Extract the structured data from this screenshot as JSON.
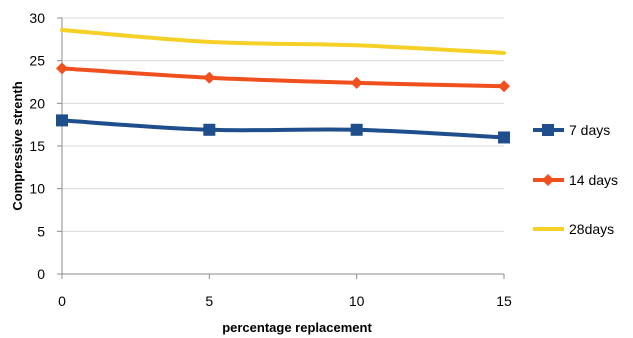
{
  "chart_data": {
    "type": "line",
    "title": "",
    "xlabel": "percentage replacement",
    "ylabel": "Compressive strenth",
    "x": [
      0,
      5,
      10,
      15
    ],
    "xlim": [
      0,
      15
    ],
    "ylim": [
      0,
      30
    ],
    "yticks": [
      0,
      5,
      10,
      15,
      20,
      25,
      30
    ],
    "grid": "horizontal",
    "legend_position": "right",
    "series": [
      {
        "name": "7 days",
        "values": [
          18.0,
          16.9,
          16.9,
          16.0
        ],
        "color": "#1f4e8c",
        "marker": "square"
      },
      {
        "name": "14 days",
        "values": [
          24.1,
          23.0,
          22.4,
          22.0
        ],
        "color": "#f0501e",
        "marker": "diamond"
      },
      {
        "name": "28days",
        "values": [
          28.6,
          27.2,
          26.8,
          25.9
        ],
        "color": "#f5d027",
        "marker": "none"
      }
    ]
  }
}
